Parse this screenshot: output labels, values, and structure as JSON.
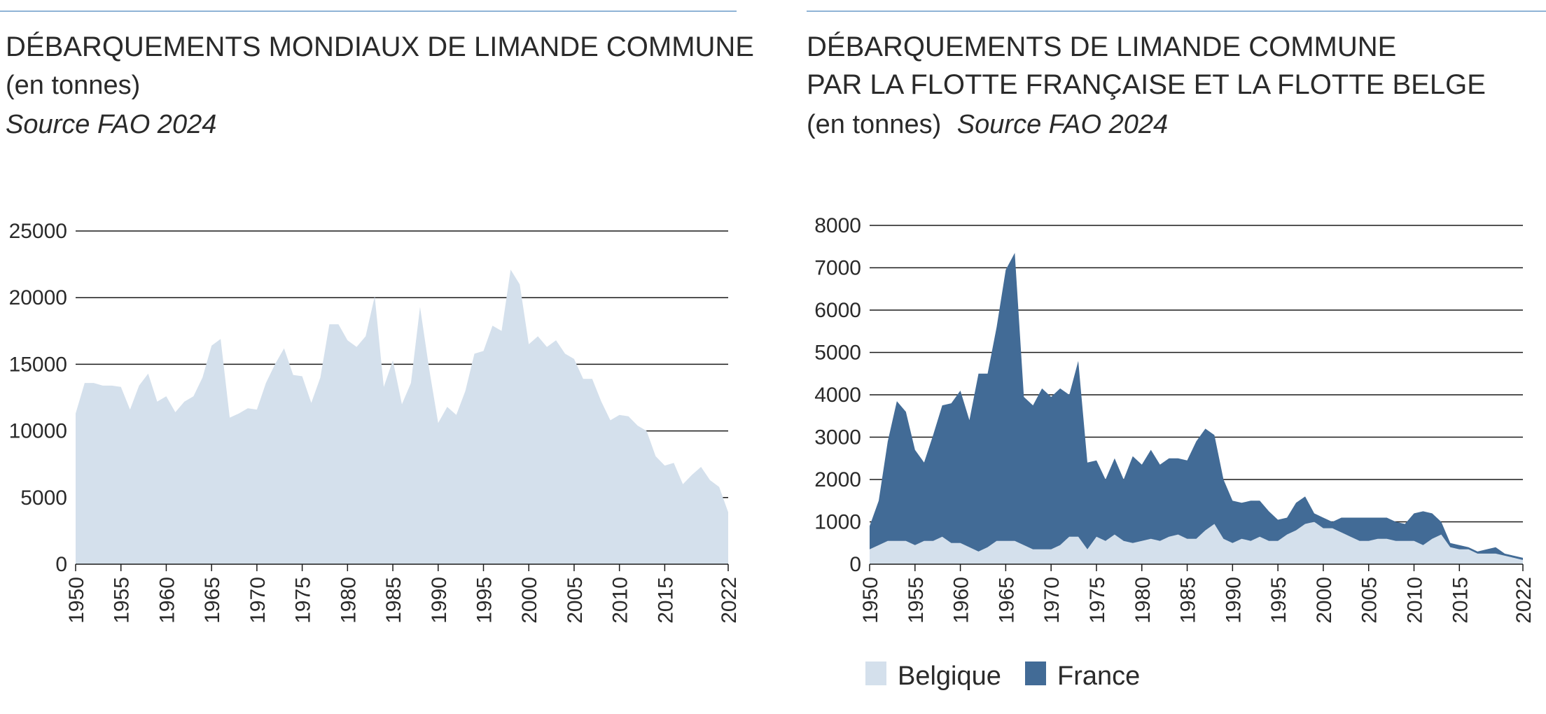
{
  "colors": {
    "belgique": "#d4e0ec",
    "france": "#426b96",
    "rule": "#8fb4d6",
    "grid": "#1a1a1a",
    "text": "#2a2a2a"
  },
  "chart_data": [
    {
      "type": "area",
      "title_lines": [
        "DÉBARQUEMENTS MONDIAUX DE LIMANDE COMMUNE",
        "(en tonnes)"
      ],
      "source": "Source FAO 2024",
      "xlim": [
        1950,
        2022
      ],
      "ylim": [
        0,
        25000
      ],
      "grid": true,
      "x_ticks": [
        "1950",
        "1955",
        "1960",
        "1965",
        "1970",
        "1975",
        "1980",
        "1985",
        "1990",
        "1995",
        "2000",
        "2005",
        "2010",
        "2015",
        "2022"
      ],
      "y_ticks": [
        "0",
        "5000",
        "10000",
        "15000",
        "20000",
        "25000"
      ],
      "x": [
        1950,
        1951,
        1952,
        1953,
        1954,
        1955,
        1956,
        1957,
        1958,
        1959,
        1960,
        1961,
        1962,
        1963,
        1964,
        1965,
        1966,
        1967,
        1968,
        1969,
        1970,
        1971,
        1972,
        1973,
        1974,
        1975,
        1976,
        1977,
        1978,
        1979,
        1980,
        1981,
        1982,
        1983,
        1984,
        1985,
        1986,
        1987,
        1988,
        1989,
        1990,
        1991,
        1992,
        1993,
        1994,
        1995,
        1996,
        1997,
        1998,
        1999,
        2000,
        2001,
        2002,
        2003,
        2004,
        2005,
        2006,
        2007,
        2008,
        2009,
        2010,
        2011,
        2012,
        2013,
        2014,
        2015,
        2016,
        2017,
        2018,
        2019,
        2020,
        2021,
        2022
      ],
      "series": [
        {
          "values": [
            11300,
            13600,
            13600,
            13400,
            13400,
            13300,
            11600,
            13400,
            14300,
            12200,
            12600,
            11400,
            12200,
            12600,
            14000,
            16400,
            16900,
            11000,
            11300,
            11700,
            11600,
            13600,
            15000,
            16200,
            14200,
            14100,
            12100,
            14000,
            18000,
            18000,
            16800,
            16300,
            17100,
            20100,
            13300,
            15300,
            12000,
            13600,
            19300,
            14700,
            10600,
            11800,
            11200,
            13000,
            15800,
            16000,
            17900,
            17500,
            22100,
            21000,
            16500,
            17100,
            16300,
            16800,
            15800,
            15400,
            13900,
            13900,
            12200,
            10800,
            11200,
            11100,
            10400,
            10000,
            8100,
            7400,
            7600,
            6000,
            6700,
            7300,
            6300,
            5800,
            3900
          ]
        }
      ]
    },
    {
      "type": "area",
      "title_lines": [
        "DÉBARQUEMENTS DE LIMANDE COMMUNE",
        "PAR LA FLOTTE FRANÇAISE ET LA FLOTTE BELGE"
      ],
      "unit": "(en tonnes)",
      "source": "Source FAO 2024",
      "stacked": true,
      "xlim": [
        1950,
        2022
      ],
      "ylim": [
        0,
        8000
      ],
      "grid": true,
      "legend_position": "bottom-left",
      "x_ticks": [
        "1950",
        "1955",
        "1960",
        "1965",
        "1970",
        "1975",
        "1980",
        "1985",
        "1990",
        "1995",
        "2000",
        "2005",
        "2010",
        "2015",
        "2022"
      ],
      "y_ticks": [
        "0",
        "1000",
        "2000",
        "3000",
        "4000",
        "5000",
        "6000",
        "7000",
        "8000"
      ],
      "x": [
        1950,
        1951,
        1952,
        1953,
        1954,
        1955,
        1956,
        1957,
        1958,
        1959,
        1960,
        1961,
        1962,
        1963,
        1964,
        1965,
        1966,
        1967,
        1968,
        1969,
        1970,
        1971,
        1972,
        1973,
        1974,
        1975,
        1976,
        1977,
        1978,
        1979,
        1980,
        1981,
        1982,
        1983,
        1984,
        1985,
        1986,
        1987,
        1988,
        1989,
        1990,
        1991,
        1992,
        1993,
        1994,
        1995,
        1996,
        1997,
        1998,
        1999,
        2000,
        2001,
        2002,
        2003,
        2004,
        2005,
        2006,
        2007,
        2008,
        2009,
        2010,
        2011,
        2012,
        2013,
        2014,
        2015,
        2016,
        2017,
        2018,
        2019,
        2020,
        2021,
        2022
      ],
      "series": [
        {
          "name": "Belgique",
          "values": [
            350,
            450,
            550,
            550,
            550,
            450,
            550,
            550,
            650,
            500,
            500,
            400,
            300,
            400,
            550,
            550,
            550,
            450,
            350,
            350,
            350,
            450,
            650,
            650,
            350,
            650,
            550,
            700,
            550,
            500,
            550,
            600,
            550,
            650,
            700,
            600,
            600,
            800,
            950,
            600,
            500,
            600,
            550,
            650,
            550,
            550,
            700,
            800,
            950,
            1000,
            850,
            850,
            750,
            650,
            550,
            550,
            600,
            600,
            550,
            550,
            550,
            450,
            600,
            700,
            400,
            350,
            350,
            250,
            250,
            250,
            200,
            150,
            100
          ]
        },
        {
          "name": "France",
          "values": [
            550,
            1050,
            2350,
            3300,
            3050,
            2250,
            1850,
            2500,
            3100,
            3300,
            3600,
            3000,
            4200,
            4100,
            5050,
            6400,
            6800,
            3500,
            3400,
            3800,
            3600,
            3700,
            3350,
            4150,
            2050,
            1800,
            1450,
            1800,
            1450,
            2050,
            1800,
            2100,
            1800,
            1850,
            1800,
            1850,
            2300,
            2400,
            2100,
            1400,
            1000,
            850,
            950,
            850,
            700,
            500,
            400,
            650,
            650,
            200,
            250,
            150,
            350,
            450,
            550,
            550,
            500,
            500,
            450,
            400,
            650,
            800,
            600,
            300,
            100,
            100,
            50,
            50,
            100,
            150,
            50,
            50,
            50
          ]
        }
      ]
    }
  ]
}
